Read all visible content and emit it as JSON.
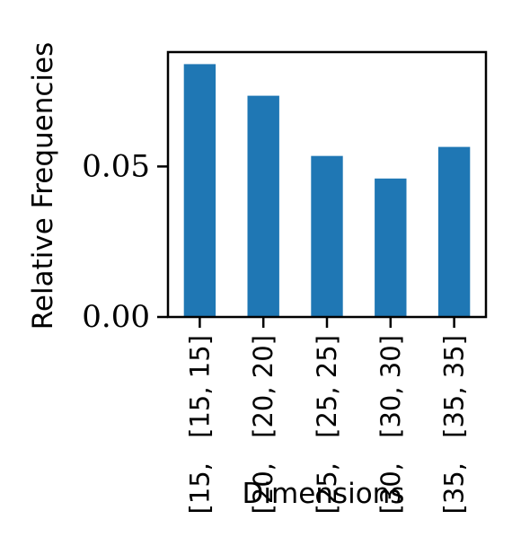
{
  "chart_data": {
    "type": "bar",
    "title": "",
    "xlabel": "Dimensions",
    "ylabel": "Relative Frequencies",
    "categories": [
      {
        "line1": "[15, 15]",
        "line2": "[15,"
      },
      {
        "line1": "[20, 20]",
        "line2": "[20,"
      },
      {
        "line1": "[25, 25]",
        "line2": "[25,"
      },
      {
        "line1": "[30, 30]",
        "line2": "[30,"
      },
      {
        "line1": "[35, 35]",
        "line2": "[35,"
      }
    ],
    "values": [
      0.084,
      0.0735,
      0.0535,
      0.046,
      0.0565
    ],
    "ylim": [
      0,
      0.088
    ],
    "yticks": [
      {
        "value": 0.0,
        "label": "0.00"
      },
      {
        "value": 0.05,
        "label": "0.05"
      }
    ],
    "bar_color": "#1f77b4",
    "grid": false
  }
}
